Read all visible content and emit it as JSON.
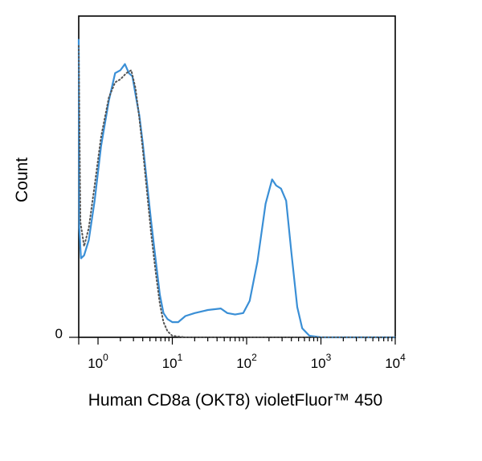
{
  "chart_data": {
    "type": "line",
    "title": "",
    "xlabel": "Human CD8a (OKT8) violetFluor™ 450",
    "ylabel": "Count",
    "x_scale": "log",
    "xlim": [
      0.55,
      10000
    ],
    "ylim": [
      0,
      100
    ],
    "grid": false,
    "legend": "none",
    "x_ticks": [
      {
        "base": "10",
        "exp": "0"
      },
      {
        "base": "10",
        "exp": "1"
      },
      {
        "base": "10",
        "exp": "2"
      },
      {
        "base": "10",
        "exp": "3"
      },
      {
        "base": "10",
        "exp": "4"
      }
    ],
    "y_ticks": [
      "0"
    ],
    "series": [
      {
        "style": "solid",
        "color": "#3a8fd6",
        "points": [
          [
            0.55,
            98
          ],
          [
            0.56,
            36
          ],
          [
            0.59,
            26
          ],
          [
            0.65,
            27
          ],
          [
            0.75,
            32
          ],
          [
            0.9,
            45
          ],
          [
            1.1,
            63
          ],
          [
            1.4,
            78
          ],
          [
            1.7,
            87
          ],
          [
            2.0,
            88
          ],
          [
            2.3,
            90
          ],
          [
            2.6,
            87
          ],
          [
            2.9,
            86
          ],
          [
            3.2,
            80
          ],
          [
            3.6,
            73
          ],
          [
            4.0,
            64
          ],
          [
            4.6,
            50
          ],
          [
            5.2,
            38
          ],
          [
            6.0,
            25
          ],
          [
            6.8,
            14
          ],
          [
            7.6,
            8
          ],
          [
            8.6,
            6
          ],
          [
            10,
            5
          ],
          [
            12,
            5
          ],
          [
            15,
            7
          ],
          [
            20,
            8
          ],
          [
            30,
            9
          ],
          [
            45,
            9.5
          ],
          [
            55,
            8
          ],
          [
            70,
            7.5
          ],
          [
            90,
            8
          ],
          [
            110,
            12
          ],
          [
            140,
            25
          ],
          [
            180,
            44
          ],
          [
            220,
            52
          ],
          [
            250,
            50
          ],
          [
            290,
            49
          ],
          [
            340,
            45
          ],
          [
            400,
            28
          ],
          [
            480,
            10
          ],
          [
            560,
            3
          ],
          [
            700,
            0.5
          ],
          [
            1000,
            0
          ],
          [
            10000,
            0
          ]
        ]
      },
      {
        "style": "dotted",
        "color": "#555555",
        "points": [
          [
            0.55,
            96
          ],
          [
            0.58,
            38
          ],
          [
            0.65,
            30
          ],
          [
            0.75,
            36
          ],
          [
            0.9,
            50
          ],
          [
            1.1,
            66
          ],
          [
            1.4,
            79
          ],
          [
            1.7,
            84
          ],
          [
            2.0,
            85
          ],
          [
            2.4,
            87
          ],
          [
            2.8,
            88
          ],
          [
            3.2,
            82
          ],
          [
            3.6,
            72
          ],
          [
            4.0,
            62
          ],
          [
            4.6,
            47
          ],
          [
            5.2,
            34
          ],
          [
            6.0,
            21
          ],
          [
            6.8,
            11
          ],
          [
            7.6,
            5
          ],
          [
            8.6,
            2
          ],
          [
            10,
            0.5
          ],
          [
            15,
            0
          ],
          [
            10000,
            0
          ]
        ]
      }
    ]
  }
}
